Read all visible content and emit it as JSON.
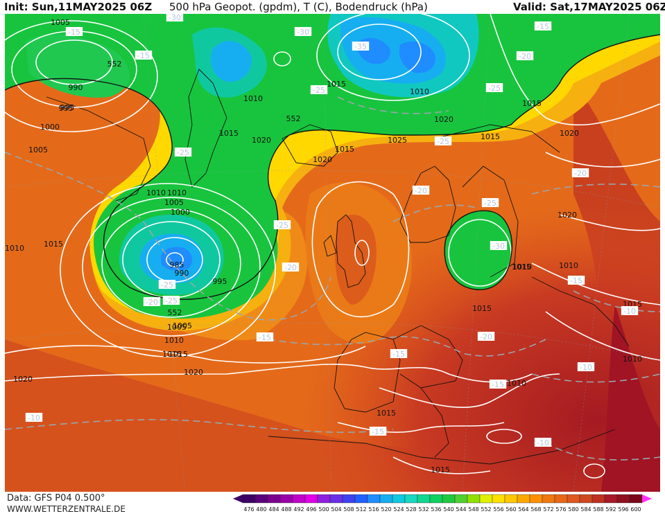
{
  "header": {
    "init": "Init: Sun,11MAY2025 06Z",
    "title": "500 hPa Geopot. (gpdm), T (C), Bodendruck (hPa)",
    "valid": "Valid: Sat,17MAY2025 06Z"
  },
  "footer": {
    "data_source": "Data: GFS P04 0.500°",
    "url": "WWW.WETTERZENTRALE.DE"
  },
  "legend": {
    "values": [
      "476",
      "480",
      "484",
      "488",
      "492",
      "496",
      "500",
      "504",
      "508",
      "512",
      "516",
      "520",
      "524",
      "528",
      "532",
      "536",
      "540",
      "544",
      "548",
      "552",
      "556",
      "560",
      "564",
      "568",
      "572",
      "576",
      "580",
      "584",
      "588",
      "592",
      "596",
      "600"
    ],
    "colors": [
      "#3c0066",
      "#5a007a",
      "#7a008e",
      "#9a00a8",
      "#c000c8",
      "#e000e8",
      "#9020e0",
      "#6a30e8",
      "#4040f0",
      "#2060ff",
      "#1f8cff",
      "#16aef0",
      "#10c8e0",
      "#18d8c0",
      "#10d890",
      "#10d060",
      "#20c840",
      "#50d030",
      "#90e000",
      "#e0f000",
      "#ffe000",
      "#ffc800",
      "#ffa800",
      "#ff9000",
      "#f07810",
      "#e86818",
      "#e05820",
      "#d04820",
      "#c03020",
      "#a81828",
      "#901020",
      "#7a0818"
    ]
  },
  "map": {
    "pressure_labels": [
      "1005",
      "995",
      "990",
      "995",
      "1000",
      "1005",
      "1010",
      "1015",
      "1010",
      "1005",
      "1000",
      "985",
      "990",
      "995",
      "1005",
      "1010",
      "1015",
      "1020",
      "1010",
      "1015",
      "1020",
      "1015",
      "1020",
      "1015",
      "1010",
      "1020",
      "1015",
      "1015",
      "1025",
      "1020",
      "1010",
      "1020",
      "1010",
      "1015",
      "1015",
      "1010",
      "1015",
      "1010",
      "1020",
      "1015",
      "1015",
      "1010",
      "1005",
      "1015"
    ],
    "temp_labels": [
      "-15",
      "-15",
      "-30",
      "-30",
      "-35",
      "-25",
      "-15",
      "-20",
      "-25",
      "-25",
      "-25",
      "-25",
      "-20",
      "-25",
      "-20",
      "-25",
      "-30",
      "-25",
      "-20",
      "-15",
      "-15",
      "-20",
      "-15",
      "-20",
      "-10",
      "-10",
      "-10",
      "-15",
      "-10",
      "-15"
    ],
    "geopot_labels": [
      "552",
      "552",
      "552"
    ]
  }
}
